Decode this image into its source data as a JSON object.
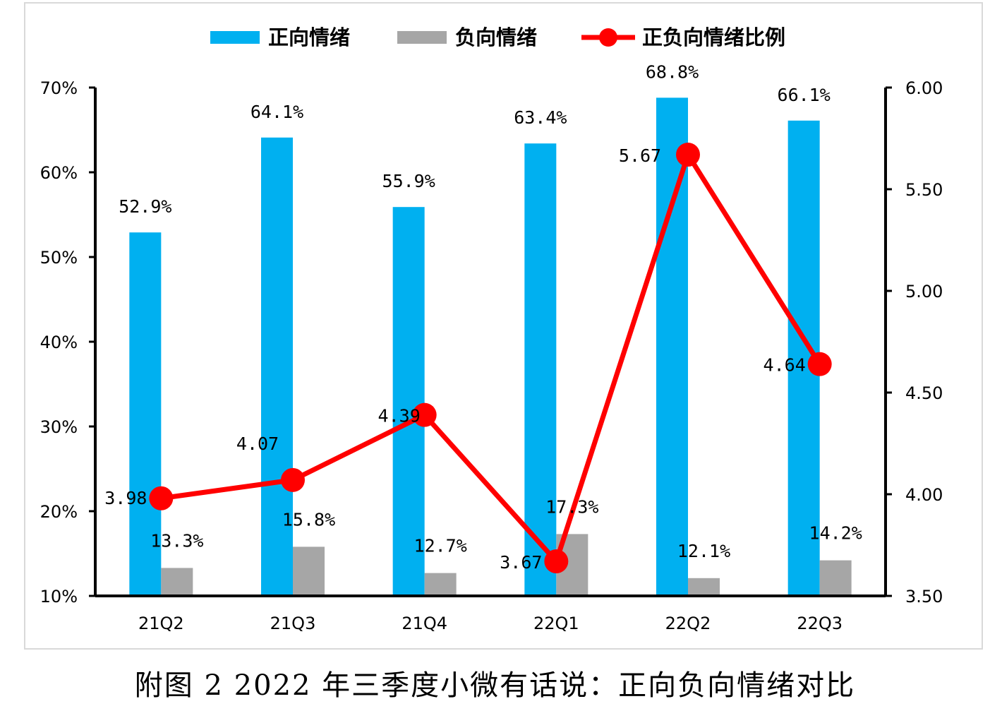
{
  "chart_data": {
    "type": "bar",
    "categories": [
      "21Q2",
      "21Q3",
      "21Q4",
      "22Q1",
      "22Q2",
      "22Q3"
    ],
    "series": [
      {
        "name": "正向情绪",
        "kind": "bar",
        "axis": "left",
        "color": "#00b0f0",
        "values": [
          52.9,
          64.1,
          55.9,
          63.4,
          68.8,
          66.1
        ],
        "labels": [
          "52.9%",
          "64.1%",
          "55.9%",
          "63.4%",
          "68.8%",
          "66.1%"
        ]
      },
      {
        "name": "负向情绪",
        "kind": "bar",
        "axis": "left",
        "color": "#a6a6a6",
        "values": [
          13.3,
          15.8,
          12.7,
          17.3,
          12.1,
          14.2
        ],
        "labels": [
          "13.3%",
          "15.8%",
          "12.7%",
          "17.3%",
          "12.1%",
          "14.2%"
        ]
      },
      {
        "name": "正负向情绪比例",
        "kind": "line",
        "axis": "right",
        "color": "#ff0000",
        "values": [
          3.98,
          4.07,
          4.39,
          3.67,
          5.67,
          4.64
        ],
        "labels": [
          "3.98",
          "4.07",
          "4.39",
          "3.67",
          "5.67",
          "4.64"
        ]
      }
    ],
    "y_left": {
      "ylim": [
        10,
        70
      ],
      "ticks": [
        "10%",
        "20%",
        "30%",
        "40%",
        "50%",
        "60%",
        "70%"
      ]
    },
    "y_right": {
      "ylim": [
        3.5,
        6.0
      ],
      "ticks": [
        "3.50",
        "4.00",
        "4.50",
        "5.00",
        "5.50",
        "6.00"
      ]
    },
    "legend_position": "top",
    "grid": false
  },
  "caption": "附图 2 2022 年三季度小微有话说：正向负向情绪对比"
}
